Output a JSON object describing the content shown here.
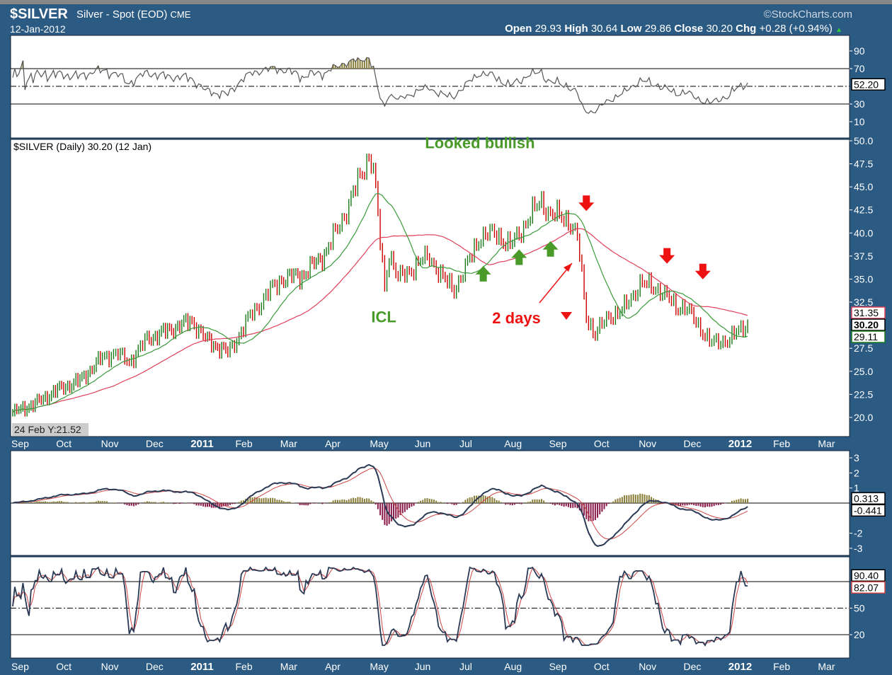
{
  "header": {
    "symbol": "$SILVER",
    "description": "Silver - Spot (EOD)",
    "exchange": "CME",
    "date": "12-Jan-2012",
    "copyright": "©StockCharts.com",
    "open_label": "Open",
    "open": "29.93",
    "high_label": "High",
    "high": "30.64",
    "low_label": "Low",
    "low": "29.86",
    "close_label": "Close",
    "close": "30.20",
    "chg_label": "Chg",
    "chg": "+0.28 (+0.94%)"
  },
  "price_legend": "$SILVER (Daily) 30.20 (12 Jan)",
  "tooltip": "24 Feb Y:21.52",
  "colors": {
    "background": "#2b5a83",
    "price_up": "#1a7a1a",
    "price_down": "#cc0000",
    "sma_short": "#3a9a3a",
    "sma_long": "#e0405a",
    "annotation_green": "#4a9a2a",
    "annotation_red": "#ee1111",
    "overbought_fill": "#8a7f3a"
  },
  "chart_data": {
    "type": "line",
    "title": "$SILVER (Daily)",
    "x_unit": "months since Sep 2010",
    "month_labels": [
      "Sep",
      "Oct",
      "Nov",
      "Dec",
      "2011",
      "Feb",
      "Mar",
      "Apr",
      "May",
      "Jun",
      "Jul",
      "Aug",
      "Sep",
      "Oct",
      "Nov",
      "Dec",
      "2012",
      "Feb",
      "Mar"
    ],
    "price": {
      "ylim": [
        18,
        50
      ],
      "ticks": [
        "50.0",
        "47.5",
        "45.0",
        "42.5",
        "40.0",
        "37.5",
        "35.0",
        "32.5",
        "27.5",
        "25.0",
        "22.5",
        "20.0"
      ],
      "closes": [
        [
          0,
          20.5
        ],
        [
          0.5,
          21.5
        ],
        [
          1,
          23
        ],
        [
          1.5,
          24
        ],
        [
          2,
          26.5
        ],
        [
          2.3,
          27
        ],
        [
          2.6,
          26
        ],
        [
          3,
          28.5
        ],
        [
          3.5,
          29.5
        ],
        [
          4,
          30.5
        ],
        [
          4.3,
          28.5
        ],
        [
          4.8,
          27
        ],
        [
          5,
          28.5
        ],
        [
          5.3,
          31
        ],
        [
          5.7,
          33.5
        ],
        [
          6,
          35
        ],
        [
          6.5,
          35.5
        ],
        [
          7,
          38
        ],
        [
          7.4,
          42
        ],
        [
          7.75,
          46
        ],
        [
          7.95,
          48.5
        ],
        [
          8.05,
          47
        ],
        [
          8.2,
          39
        ],
        [
          8.3,
          34
        ],
        [
          8.4,
          38
        ],
        [
          8.6,
          35
        ],
        [
          9,
          36.5
        ],
        [
          9.3,
          37.5
        ],
        [
          9.6,
          35
        ],
        [
          9.85,
          34
        ],
        [
          10.1,
          36
        ],
        [
          10.4,
          39.5
        ],
        [
          10.8,
          40
        ],
        [
          11.1,
          38.5
        ],
        [
          11.5,
          41.5
        ],
        [
          11.8,
          43.5
        ],
        [
          12,
          42
        ],
        [
          12.4,
          41.5
        ],
        [
          12.6,
          39.5
        ],
        [
          12.8,
          31
        ],
        [
          13,
          29
        ],
        [
          13.3,
          31
        ],
        [
          13.6,
          31.5
        ],
        [
          14,
          34.5
        ],
        [
          14.4,
          34
        ],
        [
          14.8,
          32
        ],
        [
          15,
          32
        ],
        [
          15.3,
          30
        ],
        [
          15.6,
          28
        ],
        [
          16,
          28.5
        ],
        [
          16.4,
          30.2
        ]
      ],
      "value_tags": [
        {
          "label": "31.35",
          "value": 31.35,
          "color": "#e0405a"
        },
        {
          "label": "30.20",
          "value": 30.2,
          "color": "#000000"
        },
        {
          "label": "29.11",
          "value": 29.11,
          "color": "#1a7a1a"
        }
      ]
    },
    "rsi": {
      "ticks": [
        "90",
        "70",
        "30",
        "10"
      ],
      "last": "52.20"
    },
    "macd": {
      "ticks": [
        "3",
        "2",
        "1",
        "-2",
        "-3"
      ],
      "tags": [
        "0.313",
        "-0.441"
      ]
    },
    "stoch": {
      "ticks": [
        "50",
        "20"
      ],
      "tags": [
        "90.40",
        "82.07"
      ]
    },
    "annotations": [
      {
        "text": "Looked bullish",
        "color": "green",
        "x": 9.2,
        "y": 49.2
      },
      {
        "text": "ICL",
        "color": "green",
        "x": 8.0,
        "y": 30.3
      },
      {
        "text": "2 days",
        "color": "red",
        "x": 10.7,
        "y": 30.2
      }
    ],
    "arrows_up": [
      [
        10.5,
        35.5
      ],
      [
        11.3,
        37.3
      ],
      [
        12.0,
        38.2
      ]
    ],
    "arrows_down": [
      [
        12.8,
        43.3
      ],
      [
        14.6,
        37.6
      ],
      [
        15.4,
        35.9
      ]
    ]
  }
}
